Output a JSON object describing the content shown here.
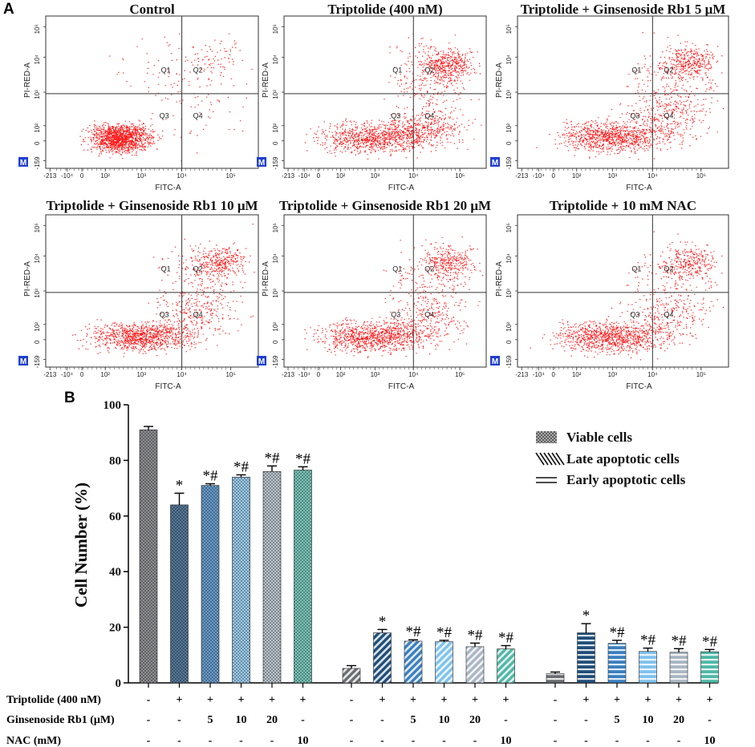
{
  "panel_a": {
    "letter": "A",
    "plots": [
      {
        "title": "Control",
        "pop": "control"
      },
      {
        "title": "Triptolide (400 nM)",
        "pop": "trip"
      },
      {
        "title": "Triptolide + Ginsenoside Rb1 5 μM",
        "pop": "rb5"
      },
      {
        "title": "Triptolide + Ginsenoside Rb1 10 μM",
        "pop": "rb10"
      },
      {
        "title": "Triptolide + Ginsenoside Rb1 20 μM",
        "pop": "rb20"
      },
      {
        "title": "Triptolide + 10 mM NAC",
        "pop": "nac"
      }
    ],
    "x_axis_label": "FITC-A",
    "y_axis_label": "PI-RED-A",
    "quadrant_labels": [
      "Q1",
      "Q2",
      "Q3",
      "Q4"
    ],
    "marker_label": "M",
    "x_ticks": [
      "-213",
      "-10⁴",
      "0",
      "10²",
      "10³",
      "10⁴",
      "10⁵"
    ],
    "y_ticks": [
      "-159",
      "0",
      "10²",
      "10³",
      "10⁴",
      "10⁵"
    ],
    "dot_color": "#ff1a1a"
  },
  "chart_data": {
    "type": "bar",
    "panel_letter": "B",
    "ylabel": "Cell Number (%)",
    "ylim": [
      0,
      100
    ],
    "yticks": [
      0,
      20,
      40,
      60,
      80,
      100
    ],
    "groups": [
      {
        "name": "Viable cells",
        "pattern": "checker",
        "values": [
          91,
          64,
          71,
          74,
          76,
          76.5
        ],
        "errors": [
          1.2,
          4.2,
          0.6,
          0.8,
          2.0,
          1.2
        ],
        "annotations": [
          "",
          "*",
          "*#",
          "*#",
          "*#",
          "*#"
        ]
      },
      {
        "name": "Late apoptotic cells",
        "pattern": "diagonal",
        "values": [
          5.2,
          18,
          15,
          14.8,
          13,
          12.2
        ],
        "errors": [
          1.0,
          1.2,
          0.5,
          0.5,
          1.3,
          1.2
        ],
        "annotations": [
          "",
          "*",
          "*#",
          "*#",
          "*#",
          "*#"
        ]
      },
      {
        "name": "Early apoptotic cells",
        "pattern": "horizontal",
        "values": [
          3.3,
          18,
          14.2,
          11.3,
          11,
          11.2
        ],
        "errors": [
          0.6,
          3.3,
          1.1,
          1.2,
          1.3,
          0.8
        ],
        "annotations": [
          "",
          "*",
          "*#",
          "*#",
          "*#",
          "*#"
        ]
      }
    ],
    "bar_colors": [
      "#6b6d72",
      "#1f4e79",
      "#3a7fbf",
      "#7fc2ee",
      "#a9b6c3",
      "#4fb7a6"
    ],
    "legend": [
      "Viable cells",
      "Late apoptotic cells",
      "Early apoptotic cells"
    ],
    "legend_position": "top-right",
    "conditions": [
      {
        "label": "Triptolide (400 nM)",
        "values": [
          "-",
          "+",
          "+",
          "+",
          "+",
          "+"
        ]
      },
      {
        "label": "Ginsenoside Rb1 (μM)",
        "values": [
          "-",
          "-",
          "5",
          "10",
          "20",
          "-"
        ]
      },
      {
        "label": "NAC (mM)",
        "values": [
          "-",
          "-",
          "-",
          "-",
          "-",
          "10"
        ]
      }
    ]
  }
}
